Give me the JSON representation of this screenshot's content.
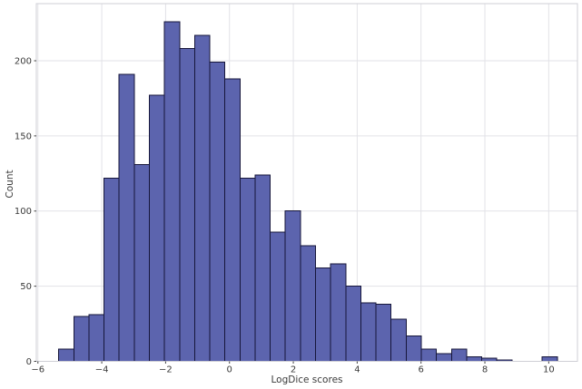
{
  "figure": {
    "background": "#ffffff"
  },
  "chart_data": {
    "type": "bar",
    "subtype": "histogram",
    "title": "",
    "xlabel": "LogDice scores",
    "ylabel": "Count",
    "bin_start": -5.35,
    "bin_width": 0.4733,
    "counts": [
      8,
      30,
      31,
      122,
      191,
      131,
      177,
      226,
      208,
      217,
      199,
      188,
      122,
      124,
      86,
      100,
      77,
      62,
      65,
      50,
      39,
      38,
      28,
      17,
      8,
      5,
      8,
      3,
      2,
      1,
      0,
      0,
      3
    ],
    "xlim": [
      -6.05,
      10.9
    ],
    "ylim": [
      0,
      238
    ],
    "xticks": [
      -6,
      -4,
      -2,
      0,
      2,
      4,
      6,
      8,
      10
    ],
    "yticks": [
      0,
      50,
      100,
      150,
      200
    ],
    "grid": true,
    "legend_position": "none",
    "colors": {
      "bar_fill": "#5c64ae",
      "bar_edge": "#16163a",
      "grid": "#e2e2e7",
      "spine": "#cfcfd6",
      "tick_text": "#3a3a3a",
      "tick_mark": "#444444"
    }
  }
}
